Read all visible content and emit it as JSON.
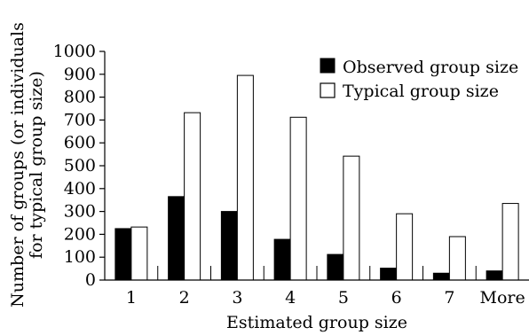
{
  "colors": {
    "observed": "#000000",
    "typical": "#ffffff",
    "outline": "#000000"
  },
  "chart_data": {
    "type": "bar",
    "categories": [
      "1",
      "2",
      "3",
      "4",
      "5",
      "6",
      "7",
      "More"
    ],
    "series": [
      {
        "name": "Observed group size",
        "values": [
          225,
          365,
          300,
          178,
          112,
          52,
          30,
          40
        ]
      },
      {
        "name": "Typical group size",
        "values": [
          232,
          732,
          895,
          712,
          542,
          290,
          190,
          335
        ]
      }
    ],
    "xlabel": "Estimated group size",
    "ylabel_lines": [
      "Number of groups (or individuals",
      "for typical group size)"
    ],
    "ylim": [
      0,
      1000
    ],
    "yticks": [
      0,
      100,
      200,
      300,
      400,
      500,
      600,
      700,
      800,
      900,
      1000
    ],
    "grid": false,
    "legend_position": "top-right"
  }
}
